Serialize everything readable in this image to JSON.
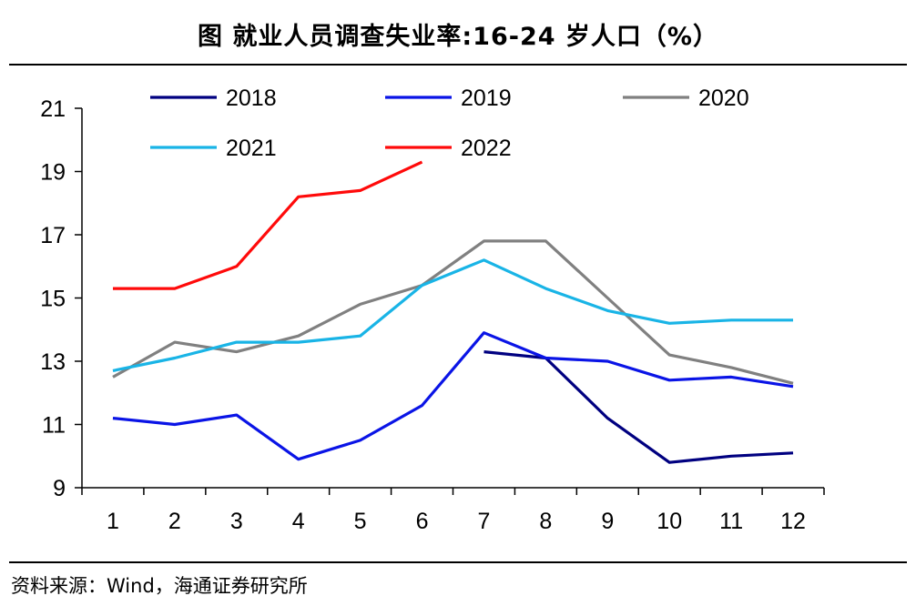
{
  "header": {
    "title": "图  就业人员调查失业率:16-24 岁人口（%）"
  },
  "footer": {
    "source": "资料来源：Wind，海通证券研究所"
  },
  "chart_data": {
    "type": "line",
    "title": "图  就业人员调查失业率:16-24 岁人口（%）",
    "xlabel": "",
    "ylabel": "",
    "x": [
      1,
      2,
      3,
      4,
      5,
      6,
      7,
      8,
      9,
      10,
      11,
      12
    ],
    "x_tick_labels": [
      "1",
      "2",
      "3",
      "4",
      "5",
      "6",
      "7",
      "8",
      "9",
      "10",
      "11",
      "12"
    ],
    "ylim": [
      9,
      21
    ],
    "y_ticks": [
      9,
      11,
      13,
      15,
      17,
      19,
      21
    ],
    "y_tick_labels": [
      "9",
      "11",
      "13",
      "15",
      "17",
      "19",
      "21"
    ],
    "grid": false,
    "legend_position": "top",
    "series": [
      {
        "name": "2018",
        "color": "#000080",
        "values": [
          null,
          null,
          null,
          null,
          null,
          null,
          13.3,
          13.1,
          11.2,
          9.8,
          10.0,
          10.1
        ]
      },
      {
        "name": "2019",
        "color": "#0a14e6",
        "values": [
          11.2,
          11.0,
          11.3,
          9.9,
          10.5,
          11.6,
          13.9,
          13.1,
          13.0,
          12.4,
          12.5,
          12.2
        ]
      },
      {
        "name": "2020",
        "color": "#808080",
        "values": [
          12.5,
          13.6,
          13.3,
          13.8,
          14.8,
          15.4,
          16.8,
          16.8,
          15.0,
          13.2,
          12.8,
          12.3
        ]
      },
      {
        "name": "2021",
        "color": "#19b4e6",
        "values": [
          12.7,
          13.1,
          13.6,
          13.6,
          13.8,
          15.4,
          16.2,
          15.3,
          14.6,
          14.2,
          14.3,
          14.3
        ]
      },
      {
        "name": "2022",
        "color": "#ff0a0a",
        "values": [
          15.3,
          15.3,
          16.0,
          18.2,
          18.4,
          19.3,
          null,
          null,
          null,
          null,
          null,
          null
        ]
      }
    ]
  }
}
